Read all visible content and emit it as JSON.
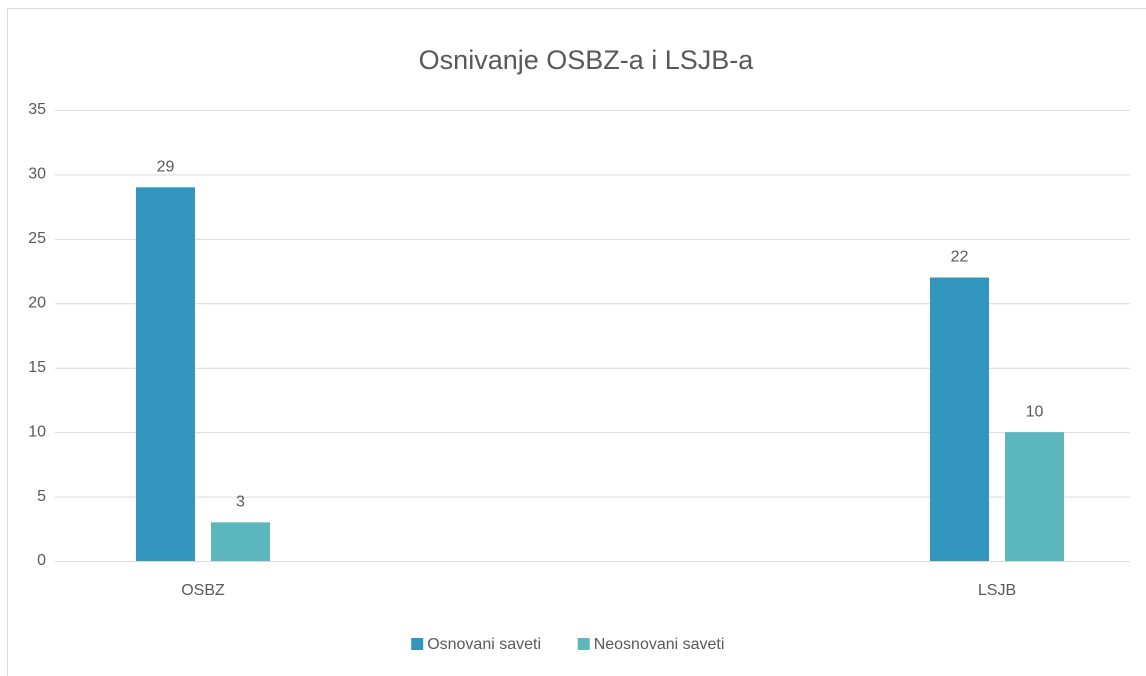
{
  "chart_data": {
    "type": "bar",
    "title": "Osnivanje OSBZ-a i LSJB-a",
    "categories": [
      "OSBZ",
      "LSJB"
    ],
    "series": [
      {
        "name": "Osnovani saveti",
        "color": "#3296bf",
        "values": [
          29,
          22
        ]
      },
      {
        "name": "Neosnovani saveti",
        "color": "#5bb6be",
        "values": [
          3,
          10
        ]
      }
    ],
    "ylim": [
      0,
      35
    ],
    "yticks": [
      0,
      5,
      10,
      15,
      20,
      25,
      30,
      35
    ],
    "grid": true,
    "legend": "bottom",
    "data_labels": true
  }
}
